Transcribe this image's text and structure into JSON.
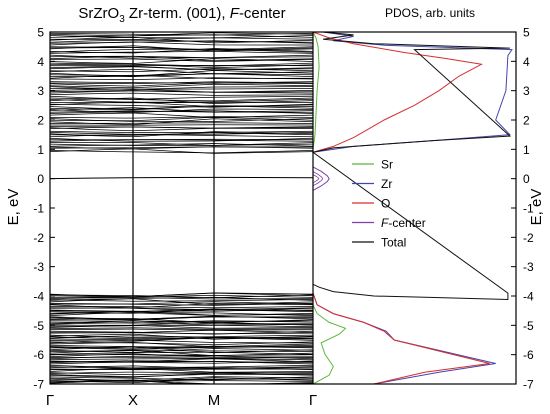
{
  "chart_data": [
    {
      "type": "line",
      "title_parts": {
        "formula_base": "SrZrO",
        "formula_sub": "3",
        "middle": " Zr-term. (001), ",
        "italic": "F",
        "suffix": "-center"
      },
      "xlabel": "",
      "ylabel": "E, eV",
      "ylim": [
        -7,
        5
      ],
      "yticks": [
        "5",
        "4",
        "3",
        "2",
        "1",
        "0",
        "-1",
        "-2",
        "-3",
        "-4",
        "-5",
        "-6",
        "-7"
      ],
      "k_points": [
        "Γ",
        "X",
        "M",
        "Γ"
      ],
      "band_groups": [
        {
          "name": "valence",
          "range": [
            -7.0,
            -3.9
          ]
        },
        {
          "name": "conduction",
          "range": [
            0.9,
            5.0
          ]
        }
      ],
      "defect_band": {
        "energy": 0.0
      },
      "grid": false
    },
    {
      "type": "line",
      "title": "PDOS, arb. units",
      "ylabel": "E, eV",
      "ylim": [
        -7,
        5
      ],
      "xlim": [
        0,
        1
      ],
      "yticks": [
        "5",
        "4",
        "3",
        "2",
        "1",
        "0",
        "-1",
        "-2",
        "-3",
        "-4",
        "-5",
        "-6",
        "-7"
      ],
      "legend_position": "middle",
      "colors": {
        "Sr": "#5cb83a",
        "Zr": "#4444aa",
        "O": "#d62d2d",
        "F-center": "#7b3fa8",
        "Total": "#111111"
      },
      "series": [
        {
          "name": "Sr",
          "points": [
            [
              0.0,
              -7.0
            ],
            [
              0.08,
              -6.7
            ],
            [
              0.1,
              -6.4
            ],
            [
              0.06,
              -6.0
            ],
            [
              0.04,
              -5.6
            ],
            [
              0.13,
              -5.3
            ],
            [
              0.16,
              -5.1
            ],
            [
              0.08,
              -4.9
            ],
            [
              0.02,
              -4.6
            ],
            [
              0.0,
              -4.3
            ],
            [
              0.0,
              1.0
            ],
            [
              0.01,
              1.5
            ],
            [
              0.015,
              2.2
            ],
            [
              0.02,
              3.0
            ],
            [
              0.03,
              3.8
            ],
            [
              0.025,
              4.5
            ],
            [
              0.015,
              4.8
            ],
            [
              0.0,
              5.0
            ]
          ]
        },
        {
          "name": "Zr",
          "points": [
            [
              0.0,
              -7.0
            ],
            [
              0.3,
              -7.0
            ],
            [
              0.62,
              -6.6
            ],
            [
              0.9,
              -6.3
            ],
            [
              0.4,
              -5.5
            ],
            [
              0.36,
              -5.2
            ],
            [
              0.25,
              -4.9
            ],
            [
              0.1,
              -4.6
            ],
            [
              0.02,
              -4.3
            ],
            [
              0.0,
              -3.9
            ],
            [
              0.0,
              0.9
            ],
            [
              0.2,
              1.1
            ],
            [
              0.6,
              1.3
            ],
            [
              0.97,
              1.5
            ],
            [
              0.9,
              2.0
            ],
            [
              0.95,
              3.0
            ],
            [
              0.96,
              4.2
            ],
            [
              0.98,
              4.4
            ],
            [
              0.35,
              4.55
            ],
            [
              0.1,
              4.7
            ],
            [
              0.2,
              4.85
            ],
            [
              0.05,
              5.0
            ]
          ]
        },
        {
          "name": "O",
          "points": [
            [
              0.0,
              -7.0
            ],
            [
              0.3,
              -7.0
            ],
            [
              0.55,
              -6.6
            ],
            [
              0.87,
              -6.3
            ],
            [
              0.4,
              -5.5
            ],
            [
              0.35,
              -5.2
            ],
            [
              0.25,
              -4.9
            ],
            [
              0.1,
              -4.6
            ],
            [
              0.02,
              -4.3
            ],
            [
              0.0,
              -3.9
            ],
            [
              0.0,
              0.9
            ],
            [
              0.1,
              1.1
            ],
            [
              0.2,
              1.4
            ],
            [
              0.35,
              2.0
            ],
            [
              0.5,
              2.5
            ],
            [
              0.62,
              3.0
            ],
            [
              0.72,
              3.5
            ],
            [
              0.83,
              3.9
            ],
            [
              0.65,
              4.1
            ],
            [
              0.45,
              4.3
            ],
            [
              0.2,
              4.6
            ],
            [
              0.08,
              4.8
            ],
            [
              0.0,
              5.0
            ]
          ]
        },
        {
          "name": "F-center",
          "points": [
            [
              0.0,
              -0.4
            ],
            [
              0.04,
              -0.25
            ],
            [
              0.07,
              -0.1
            ],
            [
              0.08,
              0.0
            ],
            [
              0.07,
              0.1
            ],
            [
              0.04,
              0.25
            ],
            [
              0.0,
              0.4
            ]
          ]
        },
        {
          "name": "Total",
          "points": [
            [
              0.0,
              -3.6
            ],
            [
              0.03,
              -3.7
            ],
            [
              0.1,
              -3.85
            ],
            [
              0.3,
              -4.0
            ],
            [
              0.6,
              -4.05
            ],
            [
              0.96,
              -4.12
            ],
            [
              0.96,
              -3.9
            ],
            [
              0.0,
              0.9
            ],
            [
              0.1,
              1.05
            ],
            [
              0.3,
              1.15
            ],
            [
              0.6,
              1.3
            ],
            [
              0.97,
              1.45
            ],
            [
              0.5,
              4.4
            ],
            [
              0.97,
              4.45
            ],
            [
              0.3,
              4.6
            ],
            [
              0.05,
              4.75
            ],
            [
              0.2,
              4.9
            ],
            [
              0.05,
              5.0
            ]
          ]
        }
      ]
    }
  ]
}
